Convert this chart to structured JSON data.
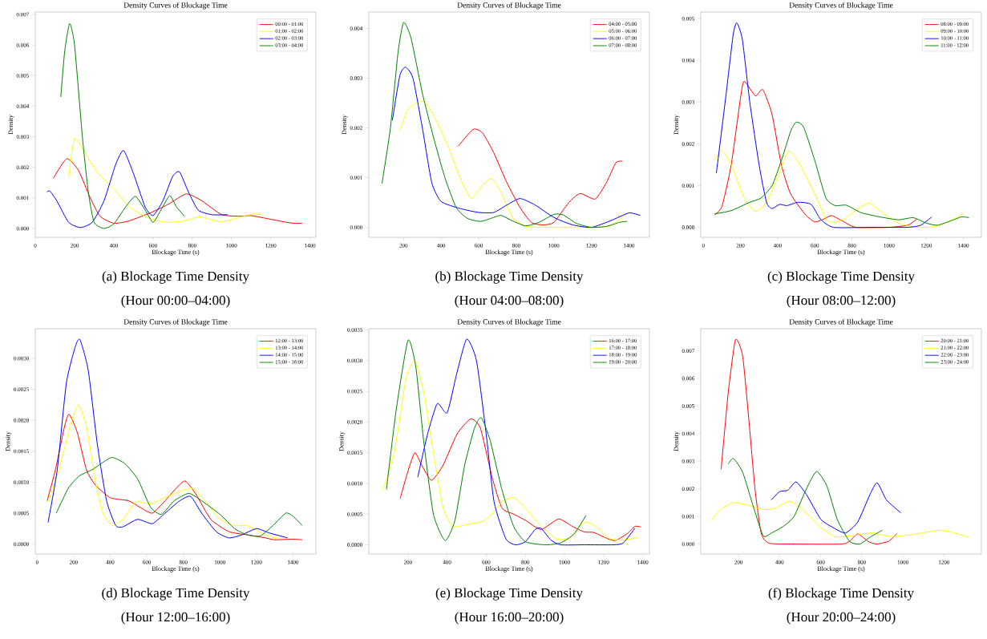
{
  "chart_data": [
    {
      "type": "line",
      "title": "Density Curves of Blockage Time",
      "xlabel": "Blockage Time (s)",
      "ylabel": "Density",
      "annotations": [
        "(a)  Blockage Time Density",
        "(Hour 00:00–04:00)"
      ],
      "legend": "top right",
      "marker": "none",
      "xlim": [
        0,
        1430
      ],
      "xticks": [
        0,
        200,
        400,
        600,
        800,
        1000,
        1200,
        1400
      ],
      "ylim": [
        -0.00029,
        0.00708
      ],
      "yticks": [
        {
          "value": 0,
          "label": "0.000"
        },
        {
          "value": 0.001,
          "label": "0.001"
        },
        {
          "value": 0.002,
          "label": "0.002"
        },
        {
          "value": 0.003,
          "label": "0.003"
        },
        {
          "value": 0.004,
          "label": "0.004"
        },
        {
          "value": 0.005,
          "label": "0.005"
        },
        {
          "value": 0.006,
          "label": "0.006"
        },
        {
          "value": 0.007,
          "label": "0.007"
        }
      ],
      "series": [
        {
          "name": "00:00 - 01:00",
          "color": "#ff0000",
          "x": [
            92,
            160,
            220,
            280,
            330,
            400,
            480,
            600,
            680,
            770,
            850,
            950,
            1050,
            1100,
            1200,
            1300,
            1360
          ],
          "values": [
            0.00164,
            0.00228,
            0.0019,
            0.001,
            0.0004,
            0.00017,
            0.00025,
            0.00055,
            0.0008,
            0.00113,
            0.0009,
            0.00045,
            0.0004,
            0.00042,
            0.0003,
            0.00018,
            0.00017
          ]
        },
        {
          "name": "01:00 - 02:00",
          "color": "#ffff00",
          "x": [
            170,
            200,
            260,
            320,
            400,
            480,
            560,
            620,
            690,
            760,
            840,
            950,
            1050,
            1110,
            1160
          ],
          "values": [
            0.00165,
            0.00293,
            0.0024,
            0.0018,
            0.0013,
            0.0007,
            0.0004,
            0.00025,
            0.0002,
            0.00025,
            0.00038,
            0.00022,
            0.00038,
            0.00047,
            0.00045
          ]
        },
        {
          "name": "02:00 - 03:00",
          "color": "#0000ff",
          "x": [
            60,
            75,
            110,
            170,
            230,
            290,
            350,
            410,
            450,
            500,
            560,
            600,
            650,
            700,
            735,
            780,
            830,
            900,
            980
          ],
          "values": [
            0.0012,
            0.00122,
            0.0009,
            0.0002,
            3e-05,
            0.0002,
            0.0009,
            0.0021,
            0.00255,
            0.0018,
            0.0007,
            0.00042,
            0.0009,
            0.0017,
            0.00185,
            0.0012,
            0.0006,
            0.00045,
            0.00045
          ]
        },
        {
          "name": "03:00 - 04:00",
          "color": "#008000",
          "x": [
            130,
            150,
            175,
            200,
            240,
            270,
            300,
            350,
            400,
            460,
            510,
            560,
            600,
            640,
            685,
            720,
            760
          ],
          "values": [
            0.0043,
            0.0058,
            0.0067,
            0.006,
            0.003,
            0.0012,
            0.0002,
            0.0,
            0.00015,
            0.0007,
            0.00105,
            0.0006,
            0.0002,
            0.0006,
            0.00107,
            0.0007,
            0.0004
          ]
        }
      ]
    },
    {
      "type": "line",
      "title": "Density Curves of Blockage Time",
      "xlabel": "Blockage Time (s)",
      "ylabel": "Density",
      "annotations": [
        "(b)  Blockage Time Density",
        "(Hour 04:00–08:00)"
      ],
      "legend": "top right",
      "marker": "none",
      "xlim": [
        15,
        1509
      ],
      "xticks": [
        200,
        400,
        600,
        800,
        1000,
        1200,
        1400
      ],
      "ylim": [
        -0.0002,
        0.00433
      ],
      "yticks": [
        {
          "value": 0,
          "label": "0.000"
        },
        {
          "value": 0.001,
          "label": "0.001"
        },
        {
          "value": 0.002,
          "label": "0.002"
        },
        {
          "value": 0.003,
          "label": "0.003"
        },
        {
          "value": 0.004,
          "label": "0.004"
        }
      ],
      "series": [
        {
          "name": "04:00 - 05:00",
          "color": "#ff0000",
          "x": [
            490,
            570,
            620,
            680,
            750,
            820,
            880,
            940,
            1000,
            1080,
            1140,
            1220,
            1280,
            1330,
            1365
          ],
          "values": [
            0.00163,
            0.00197,
            0.0019,
            0.0015,
            0.0009,
            0.0004,
            0.0001,
            5e-05,
            0.0001,
            0.0005,
            0.00068,
            0.00057,
            0.0009,
            0.0013,
            0.00133
          ]
        },
        {
          "name": "05:00 - 06:00",
          "color": "#ffff00",
          "x": [
            180,
            220,
            280,
            320,
            380,
            440,
            500,
            560,
            620,
            670,
            720,
            780,
            850,
            950,
            1100,
            1200,
            1300,
            1380,
            1400
          ],
          "values": [
            0.00193,
            0.00235,
            0.00253,
            0.0025,
            0.0021,
            0.0016,
            0.001,
            0.00058,
            0.00085,
            0.00098,
            0.0007,
            0.0002,
            2e-05,
            0.0,
            0.0,
            0.0,
            3e-05,
            0.00025,
            0.0003
          ]
        },
        {
          "name": "06:00 - 07:00",
          "color": "#0000ff",
          "x": [
            140,
            180,
            210,
            250,
            300,
            350,
            400,
            500,
            600,
            680,
            750,
            820,
            900,
            1000,
            1100,
            1200,
            1300,
            1400,
            1460
          ],
          "values": [
            0.00215,
            0.00305,
            0.00322,
            0.003,
            0.002,
            0.0009,
            0.00052,
            0.00038,
            0.0003,
            0.0003,
            0.00045,
            0.00058,
            0.00045,
            0.0002,
            5e-05,
            0.0,
            0.00013,
            0.00029,
            0.00024
          ]
        },
        {
          "name": "07:00 - 08:00",
          "color": "#008000",
          "x": [
            85,
            130,
            170,
            200,
            240,
            300,
            360,
            420,
            480,
            540,
            610,
            680,
            720,
            780,
            850,
            920,
            1000,
            1050,
            1120,
            1200,
            1280,
            1350,
            1390
          ],
          "values": [
            0.00088,
            0.002,
            0.0035,
            0.00412,
            0.0038,
            0.0027,
            0.0018,
            0.001,
            0.0004,
            0.00018,
            0.00012,
            0.0002,
            0.00024,
            0.00013,
            3e-05,
            0.0001,
            0.00026,
            0.00025,
            8e-05,
            0.0,
            2e-05,
            0.0001,
            0.00012
          ]
        }
      ]
    },
    {
      "type": "line",
      "title": "Density Curves of Blockage Time",
      "xlabel": "Blockage Time (s)",
      "ylabel": "Density",
      "annotations": [
        "(c)  Blockage Time Density",
        "(Hour 08:00–12:00)"
      ],
      "legend": "top right",
      "marker": "none",
      "xlim": [
        -14,
        1497
      ],
      "xticks": [
        0,
        200,
        400,
        600,
        800,
        1000,
        1200,
        1400
      ],
      "ylim": [
        -0.00024,
        0.00516
      ],
      "yticks": [
        {
          "value": 0,
          "label": "0.000"
        },
        {
          "value": 0.001,
          "label": "0.001"
        },
        {
          "value": 0.002,
          "label": "0.002"
        },
        {
          "value": 0.003,
          "label": "0.003"
        },
        {
          "value": 0.004,
          "label": "0.004"
        },
        {
          "value": 0.005,
          "label": "0.005"
        }
      ],
      "series": [
        {
          "name": "08:00 - 09:00",
          "color": "#ff0000",
          "x": [
            60,
            100,
            150,
            200,
            220,
            280,
            320,
            370,
            420,
            470,
            550,
            600,
            650,
            690,
            750,
            820,
            1000,
            1100,
            1150
          ],
          "values": [
            0.0003,
            0.0005,
            0.0015,
            0.0031,
            0.0035,
            0.00315,
            0.0033,
            0.0027,
            0.0015,
            0.0008,
            0.0003,
            0.00013,
            0.0002,
            0.00028,
            0.00015,
            0.0,
            0.0,
            5e-05,
            0.0002
          ]
        },
        {
          "name": "09:00 - 10:00",
          "color": "#ffff00",
          "x": [
            60,
            100,
            150,
            220,
            280,
            340,
            400,
            460,
            520,
            600,
            660,
            700,
            760,
            820,
            890,
            950,
            1050,
            1150,
            1250,
            1350,
            1400
          ],
          "values": [
            0.0016,
            0.00185,
            0.0015,
            0.0007,
            0.00038,
            0.0006,
            0.0012,
            0.00183,
            0.0015,
            0.0008,
            0.0002,
            0.00012,
            0.0002,
            0.0004,
            0.00058,
            0.0004,
            0.0001,
            0.0,
            2e-05,
            0.0002,
            0.00033
          ]
        },
        {
          "name": "10:00 - 11:00",
          "color": "#0000ff",
          "x": [
            70,
            120,
            160,
            180,
            210,
            250,
            300,
            340,
            370,
            410,
            450,
            510,
            580,
            630,
            700,
            900,
            1100,
            1170,
            1230
          ],
          "values": [
            0.0013,
            0.0031,
            0.0046,
            0.0049,
            0.0045,
            0.003,
            0.0015,
            0.0006,
            0.00045,
            0.00055,
            0.00052,
            0.0006,
            0.00055,
            0.0002,
            0.0,
            0.0,
            0.0,
            5e-05,
            0.00025
          ]
        },
        {
          "name": "11:00 - 12:00",
          "color": "#008000",
          "x": [
            60,
            150,
            250,
            310,
            370,
            420,
            470,
            500,
            540,
            600,
            660,
            710,
            770,
            850,
            950,
            1050,
            1130,
            1200,
            1260,
            1330,
            1390,
            1430
          ],
          "values": [
            0.00032,
            0.0004,
            0.0006,
            0.0007,
            0.001,
            0.0016,
            0.0023,
            0.00252,
            0.0024,
            0.0016,
            0.0007,
            0.00052,
            0.00053,
            0.00035,
            0.00025,
            0.00018,
            0.00023,
            0.0001,
            5e-05,
            0.00015,
            0.00025,
            0.00023
          ]
        }
      ]
    },
    {
      "type": "line",
      "title": "Density Curves of Blockage Time",
      "xlabel": "Blockage Time (s)",
      "ylabel": "Density",
      "annotations": [
        "(d)  Blockage Time Density",
        "(Hour 12:00–16:00)"
      ],
      "legend": "top right",
      "marker": "none",
      "xlim": [
        -10,
        1525
      ],
      "xticks": [
        0,
        200,
        400,
        600,
        800,
        1000,
        1200,
        1400
      ],
      "ylim": [
        -0.00016,
        0.00348
      ],
      "yticks": [
        {
          "value": 0,
          "label": "0.0000"
        },
        {
          "value": 0.0005,
          "label": "0.0005"
        },
        {
          "value": 0.001,
          "label": "0.0010"
        },
        {
          "value": 0.0015,
          "label": "0.0015"
        },
        {
          "value": 0.002,
          "label": "0.0020"
        },
        {
          "value": 0.0025,
          "label": "0.0025"
        },
        {
          "value": 0.003,
          "label": "0.0030"
        }
      ],
      "series": [
        {
          "name": "12:00 - 13:00",
          "color": "#ff0000",
          "x": [
            55,
            100,
            150,
            175,
            220,
            270,
            320,
            400,
            500,
            560,
            630,
            700,
            760,
            810,
            870,
            950,
            1050,
            1150,
            1250,
            1300,
            1400,
            1450
          ],
          "values": [
            0.0007,
            0.0012,
            0.0019,
            0.0021,
            0.0018,
            0.0012,
            0.00095,
            0.00075,
            0.0007,
            0.0006,
            0.0005,
            0.0007,
            0.0009,
            0.00102,
            0.0008,
            0.0004,
            0.0002,
            0.00015,
            0.0001,
            7e-05,
            8e-05,
            7e-05
          ]
        },
        {
          "name": "13:00 - 14:00",
          "color": "#ffff00",
          "x": [
            60,
            120,
            180,
            225,
            270,
            320,
            360,
            410,
            470,
            540,
            620,
            700,
            780,
            850,
            920,
            1000,
            1080,
            1150,
            1230,
            1300,
            1340
          ],
          "values": [
            0.00068,
            0.0012,
            0.0019,
            0.00225,
            0.0019,
            0.001,
            0.0005,
            0.0003,
            0.0004,
            0.00068,
            0.00065,
            0.00075,
            0.00085,
            0.0009,
            0.0007,
            0.0004,
            0.0003,
            0.0003,
            0.00018,
            0.0001,
            0.0001
          ]
        },
        {
          "name": "14:00 - 15:00",
          "color": "#0000ff",
          "x": [
            60,
            110,
            160,
            210,
            235,
            280,
            330,
            380,
            430,
            470,
            550,
            630,
            700,
            780,
            840,
            900,
            980,
            1050,
            1120,
            1200,
            1270,
            1370
          ],
          "values": [
            0.00035,
            0.0012,
            0.0026,
            0.0032,
            0.0033,
            0.0028,
            0.0016,
            0.0007,
            0.0003,
            0.00028,
            0.0004,
            0.00033,
            0.0005,
            0.0007,
            0.00077,
            0.0005,
            0.0002,
            0.0001,
            0.00015,
            0.00025,
            0.00018,
            0.0001
          ]
        },
        {
          "name": "15:00 - 16:00",
          "color": "#008000",
          "x": [
            105,
            170,
            230,
            300,
            350,
            410,
            480,
            550,
            620,
            680,
            750,
            830,
            900,
            1000,
            1080,
            1150,
            1220,
            1290,
            1360,
            1400,
            1450
          ],
          "values": [
            0.0005,
            0.0009,
            0.0011,
            0.0012,
            0.0013,
            0.0014,
            0.0013,
            0.00105,
            0.0006,
            0.00048,
            0.0007,
            0.00082,
            0.0007,
            0.00048,
            0.00025,
            0.00015,
            0.00013,
            0.0003,
            0.0005,
            0.00045,
            0.0003
          ]
        }
      ]
    },
    {
      "type": "line",
      "title": "Density Curves of Blockage Time",
      "xlabel": "Blockage Time (s)",
      "ylabel": "Density",
      "annotations": [
        "(e)  Blockage Time Density",
        "(Hour 16:00–20:00)"
      ],
      "legend": "top right",
      "marker": "none",
      "xlim": [
        0,
        1434
      ],
      "xticks": [
        200,
        400,
        600,
        800,
        1000,
        1200,
        1400
      ],
      "ylim": [
        -0.00015,
        0.00352
      ],
      "yticks": [
        {
          "value": 0,
          "label": "0.0000"
        },
        {
          "value": 0.0005,
          "label": "0.0005"
        },
        {
          "value": 0.001,
          "label": "0.0010"
        },
        {
          "value": 0.0015,
          "label": "0.0015"
        },
        {
          "value": 0.002,
          "label": "0.0020"
        },
        {
          "value": 0.0025,
          "label": "0.0025"
        },
        {
          "value": 0.003,
          "label": "0.0030"
        },
        {
          "value": 0.0035,
          "label": "0.0035"
        }
      ],
      "series": [
        {
          "name": "16:00 - 17:00",
          "color": "#ff0000",
          "x": [
            160,
            200,
            235,
            270,
            320,
            380,
            450,
            520,
            570,
            630,
            680,
            740,
            800,
            880,
            970,
            1040,
            1100,
            1150,
            1220,
            1260,
            1320,
            1360,
            1390
          ],
          "values": [
            0.00075,
            0.0012,
            0.0015,
            0.0013,
            0.00105,
            0.0013,
            0.0018,
            0.00205,
            0.0019,
            0.0011,
            0.0006,
            0.0005,
            0.0004,
            0.00025,
            0.00042,
            0.0003,
            0.00021,
            0.0002,
            0.0001,
            7e-05,
            0.00018,
            0.0003,
            0.00029
          ]
        },
        {
          "name": "17:00 - 18:00",
          "color": "#ffff00",
          "x": [
            70,
            130,
            190,
            235,
            280,
            330,
            380,
            430,
            500,
            580,
            630,
            680,
            740,
            800,
            880,
            960,
            1020,
            1080,
            1110,
            1160,
            1230,
            1300,
            1380
          ],
          "values": [
            0.00088,
            0.0015,
            0.0027,
            0.003,
            0.0025,
            0.0015,
            0.0006,
            0.0003,
            0.00033,
            0.00038,
            0.0005,
            0.0007,
            0.00077,
            0.0006,
            0.0003,
            0.0001,
            0.0001,
            0.0003,
            0.00037,
            0.0003,
            0.0001,
            8e-05,
            0.00012
          ]
        },
        {
          "name": "18:00 - 19:00",
          "color": "#0000ff",
          "x": [
            250,
            300,
            350,
            400,
            450,
            500,
            550,
            600,
            640,
            700,
            750,
            800,
            850,
            880,
            930,
            980,
            1100,
            1250,
            1300,
            1360
          ],
          "values": [
            0.0011,
            0.0018,
            0.0023,
            0.00215,
            0.0028,
            0.00335,
            0.003,
            0.0018,
            0.0007,
            0.0001,
            0.0,
            5e-05,
            0.00025,
            0.00027,
            8e-05,
            0.0,
            0.0,
            0.0,
            3e-05,
            0.00027
          ]
        },
        {
          "name": "19:00 - 20:00",
          "color": "#008000",
          "x": [
            90,
            140,
            200,
            240,
            280,
            330,
            390,
            440,
            490,
            540,
            575,
            620,
            680,
            740,
            800,
            900,
            980,
            1050,
            1110
          ],
          "values": [
            0.0009,
            0.0022,
            0.00333,
            0.0029,
            0.0017,
            0.0005,
            7e-05,
            0.0004,
            0.0013,
            0.0019,
            0.00207,
            0.0017,
            0.0009,
            0.0003,
            5e-05,
            0.0,
            3e-05,
            0.00018,
            0.00048
          ]
        }
      ]
    },
    {
      "type": "line",
      "title": "Density Curves of Blockage Time",
      "xlabel": "Blockage Time (s)",
      "ylabel": "Density",
      "annotations": [
        "(f)  Blockage Time Density",
        "(Hour 20:00–24:00)"
      ],
      "legend": "top right",
      "marker": "none",
      "xlim": [
        16,
        1382
      ],
      "xticks": [
        200,
        400,
        600,
        800,
        1000,
        1200
      ],
      "ylim": [
        -0.00036,
        0.0078
      ],
      "yticks": [
        {
          "value": 0,
          "label": "0.000"
        },
        {
          "value": 0.001,
          "label": "0.001"
        },
        {
          "value": 0.002,
          "label": "0.002"
        },
        {
          "value": 0.003,
          "label": "0.003"
        },
        {
          "value": 0.004,
          "label": "0.004"
        },
        {
          "value": 0.005,
          "label": "0.005"
        },
        {
          "value": 0.006,
          "label": "0.006"
        },
        {
          "value": 0.007,
          "label": "0.007"
        }
      ],
      "series": [
        {
          "name": "20:00 - 21:00",
          "color": "#ff0000",
          "x": [
            115,
            150,
            185,
            220,
            250,
            280,
            310,
            350,
            500,
            700,
            740,
            780,
            830,
            870,
            930,
            970
          ],
          "values": [
            0.0027,
            0.0055,
            0.0074,
            0.0068,
            0.0045,
            0.002,
            0.0004,
            3e-05,
            0.0,
            0.0,
            0.0001,
            0.00037,
            0.0001,
            0.0,
            0.0001,
            0.00037
          ]
        },
        {
          "name": "21:00 - 22:00",
          "color": "#ffff00",
          "x": [
            65,
            120,
            180,
            250,
            320,
            380,
            450,
            520,
            600,
            670,
            750,
            850,
            950,
            1050,
            1180,
            1250,
            1320
          ],
          "values": [
            0.00085,
            0.0013,
            0.0015,
            0.0014,
            0.00125,
            0.0013,
            0.00155,
            0.0012,
            0.0006,
            0.00027,
            0.0003,
            0.0004,
            0.00027,
            0.00035,
            0.0005,
            0.0004,
            0.00025
          ]
        },
        {
          "name": "22:00 - 23:00",
          "color": "#0000ff",
          "x": [
            360,
            400,
            440,
            480,
            530,
            600,
            660,
            720,
            780,
            840,
            875,
            920,
            990
          ],
          "values": [
            0.0016,
            0.0019,
            0.00195,
            0.00225,
            0.0018,
            0.0009,
            0.0006,
            0.0004,
            0.0008,
            0.0018,
            0.00222,
            0.0016,
            0.00113
          ]
        },
        {
          "name": "23:00 - 24:00",
          "color": "#008000",
          "x": [
            150,
            175,
            220,
            270,
            320,
            360,
            420,
            470,
            530,
            580,
            630,
            680,
            740,
            790,
            840,
            900
          ],
          "values": [
            0.0029,
            0.0031,
            0.0026,
            0.0014,
            0.0003,
            0.0004,
            0.00065,
            0.001,
            0.002,
            0.00263,
            0.0021,
            0.0009,
            0.0001,
            0.0,
            0.00025,
            0.0005
          ]
        }
      ]
    }
  ]
}
